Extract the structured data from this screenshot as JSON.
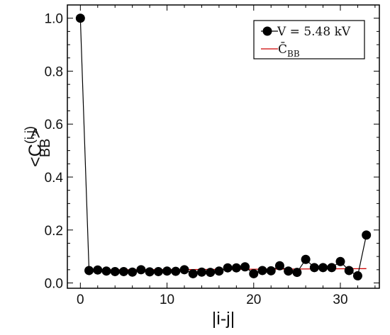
{
  "chart_data": {
    "type": "scatter",
    "xlabel": "|i-j|",
    "ylabel": {
      "prefix": "<C",
      "superscript": "(i,j)",
      "subscript": "BB",
      "suffix": ">"
    },
    "xlim": [
      -1.5,
      34.5
    ],
    "ylim": [
      -0.02,
      1.05
    ],
    "x_ticks": [
      0,
      10,
      20,
      30
    ],
    "x_tick_labels": [
      "0",
      "10",
      "20",
      "30"
    ],
    "y_ticks": [
      0.0,
      0.2,
      0.4,
      0.6,
      0.8,
      1.0
    ],
    "y_tick_labels": [
      "0.0",
      "0.2",
      "0.4",
      "0.6",
      "0.8",
      "1.0"
    ],
    "series": [
      {
        "name": "V = 5.48 kV",
        "style": "line-marker",
        "color": "#000000",
        "x": [
          0,
          1,
          2,
          3,
          4,
          5,
          6,
          7,
          8,
          9,
          10,
          11,
          12,
          13,
          14,
          15,
          16,
          17,
          18,
          19,
          20,
          21,
          22,
          23,
          24,
          25,
          26,
          27,
          28,
          29,
          30,
          31,
          32,
          33
        ],
        "y": [
          1.0,
          0.047,
          0.049,
          0.045,
          0.043,
          0.043,
          0.041,
          0.05,
          0.042,
          0.043,
          0.045,
          0.044,
          0.05,
          0.035,
          0.041,
          0.04,
          0.045,
          0.057,
          0.057,
          0.061,
          0.035,
          0.047,
          0.046,
          0.065,
          0.045,
          0.04,
          0.089,
          0.058,
          0.058,
          0.058,
          0.081,
          0.047,
          0.027,
          0.181
        ]
      },
      {
        "name": "C̄",
        "name_sub": "BB",
        "style": "line",
        "color": "#cc0000",
        "x": [
          1,
          33
        ],
        "y": [
          0.049,
          0.054
        ]
      }
    ],
    "legend": {
      "placement": "top-right",
      "entries": [
        {
          "text": "V = 5.48 kV",
          "sub": ""
        },
        {
          "text": "C̄",
          "sub": "BB"
        }
      ]
    },
    "grid": false
  }
}
